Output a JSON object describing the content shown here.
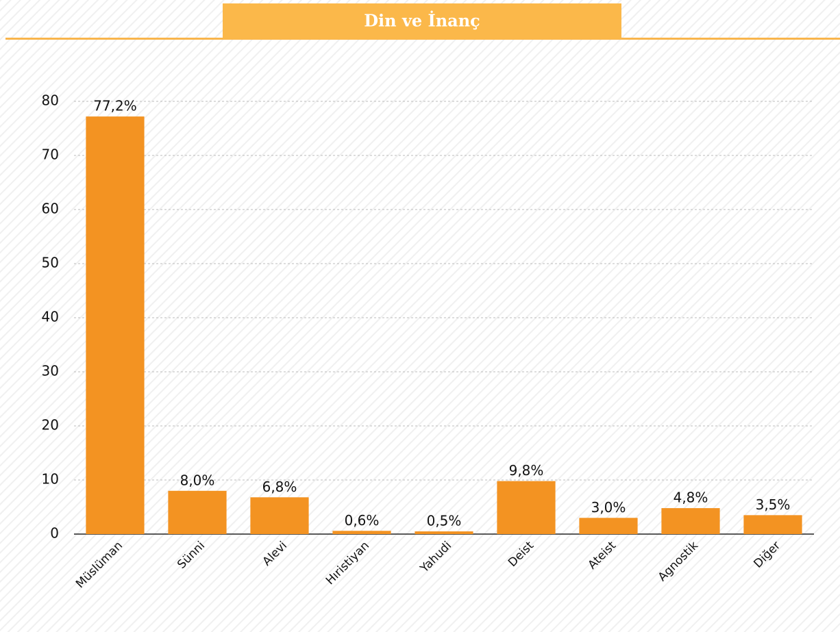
{
  "chart_data": {
    "type": "bar",
    "title": "Din ve İnanç",
    "categories": [
      "Müslüman",
      "Sünni",
      "Alevi",
      "Hıristiyan",
      "Yahudi",
      "Deist",
      "Ateist",
      "Agnostik",
      "Diğer"
    ],
    "values": [
      77.2,
      8.0,
      6.8,
      0.6,
      0.5,
      9.8,
      3.0,
      4.8,
      3.5
    ],
    "value_labels": [
      "77,2%",
      "8,0%",
      "6,8%",
      "0,6%",
      "0,5%",
      "9,8%",
      "3,0%",
      "4,8%",
      "3,5%"
    ],
    "color": "#f39322",
    "ylim": [
      0,
      80
    ],
    "yticks": [
      0,
      10,
      20,
      30,
      40,
      50,
      60,
      70,
      80
    ],
    "grid": true
  }
}
